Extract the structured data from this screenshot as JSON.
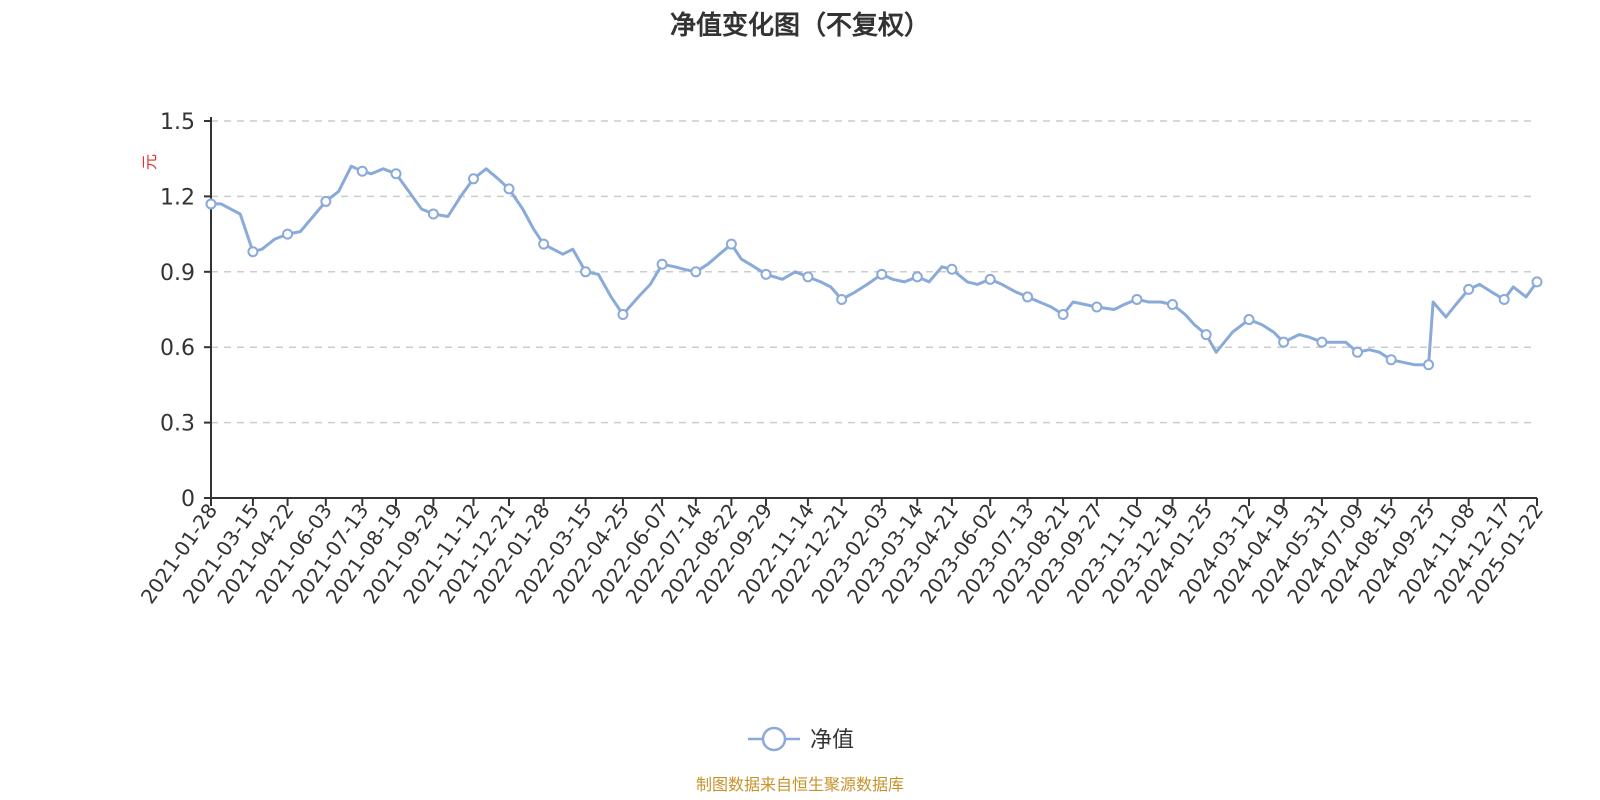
{
  "chart_data": {
    "type": "line",
    "title": "净值变化图（不复权）",
    "ylabel": "元",
    "ylim": [
      0,
      1.5
    ],
    "yticks": [
      "0",
      "0.3",
      "0.6",
      "0.9",
      "1.2",
      "1.5"
    ],
    "grid": true,
    "legend_position": "bottom-center",
    "source": "制图数据来自恒生聚源数据库",
    "colors": {
      "line": "#8aaad9",
      "marker_fill": "#ffffff",
      "axis": "#333333",
      "grid": "#cccccc",
      "unit": "#e0302b",
      "source": "#c8922a"
    },
    "x_tick_labels": [
      "2021-01-28",
      "2021-03-15",
      "2021-04-22",
      "2021-06-03",
      "2021-07-13",
      "2021-08-19",
      "2021-09-29",
      "2021-11-12",
      "2021-12-21",
      "2022-01-28",
      "2022-03-15",
      "2022-04-25",
      "2022-06-07",
      "2022-07-14",
      "2022-08-22",
      "2022-09-29",
      "2022-11-14",
      "2022-12-21",
      "2023-02-03",
      "2023-03-14",
      "2023-04-21",
      "2023-06-02",
      "2023-07-13",
      "2023-08-21",
      "2023-09-27",
      "2023-11-10",
      "2023-12-19",
      "2024-01-25",
      "2024-03-12",
      "2024-04-19",
      "2024-05-31",
      "2024-07-09",
      "2024-08-15",
      "2024-09-25",
      "2024-11-08",
      "2024-12-17",
      "2025-01-22"
    ],
    "series": [
      {
        "name": "净值",
        "x": [
          "2021-01-28",
          "2021-02-08",
          "2021-03-01",
          "2021-03-15",
          "2021-03-25",
          "2021-04-08",
          "2021-04-22",
          "2021-05-06",
          "2021-05-20",
          "2021-06-03",
          "2021-06-17",
          "2021-07-01",
          "2021-07-13",
          "2021-07-23",
          "2021-08-05",
          "2021-08-19",
          "2021-09-02",
          "2021-09-16",
          "2021-09-29",
          "2021-10-15",
          "2021-10-29",
          "2021-11-12",
          "2021-11-26",
          "2021-12-09",
          "2021-12-21",
          "2022-01-05",
          "2022-01-17",
          "2022-01-28",
          "2022-02-18",
          "2022-03-01",
          "2022-03-15",
          "2022-03-29",
          "2022-04-12",
          "2022-04-25",
          "2022-05-12",
          "2022-05-25",
          "2022-06-07",
          "2022-06-21",
          "2022-07-01",
          "2022-07-14",
          "2022-07-27",
          "2022-08-09",
          "2022-08-22",
          "2022-09-02",
          "2022-09-16",
          "2022-09-29",
          "2022-10-17",
          "2022-10-31",
          "2022-11-14",
          "2022-11-28",
          "2022-12-09",
          "2022-12-21",
          "2023-01-05",
          "2023-01-18",
          "2023-02-03",
          "2023-02-15",
          "2023-02-28",
          "2023-03-14",
          "2023-03-27",
          "2023-04-10",
          "2023-04-21",
          "2023-05-08",
          "2023-05-19",
          "2023-06-02",
          "2023-06-15",
          "2023-06-30",
          "2023-07-13",
          "2023-07-26",
          "2023-08-08",
          "2023-08-21",
          "2023-09-01",
          "2023-09-14",
          "2023-09-27",
          "2023-10-16",
          "2023-10-27",
          "2023-11-10",
          "2023-11-23",
          "2023-12-06",
          "2023-12-19",
          "2024-01-02",
          "2024-01-12",
          "2024-01-25",
          "2024-02-05",
          "2024-02-23",
          "2024-03-12",
          "2024-03-26",
          "2024-04-08",
          "2024-04-19",
          "2024-05-06",
          "2024-05-17",
          "2024-05-31",
          "2024-06-14",
          "2024-06-26",
          "2024-07-09",
          "2024-07-22",
          "2024-08-02",
          "2024-08-15",
          "2024-08-28",
          "2024-09-10",
          "2024-09-25",
          "2024-09-30",
          "2024-10-14",
          "2024-10-25",
          "2024-11-08",
          "2024-11-20",
          "2024-12-03",
          "2024-12-17",
          "2024-12-27",
          "2025-01-10",
          "2025-01-22"
        ],
        "values": [
          1.17,
          1.17,
          1.13,
          0.98,
          0.99,
          1.03,
          1.05,
          1.06,
          1.12,
          1.18,
          1.22,
          1.32,
          1.3,
          1.29,
          1.31,
          1.29,
          1.22,
          1.15,
          1.13,
          1.12,
          1.2,
          1.27,
          1.31,
          1.27,
          1.23,
          1.15,
          1.07,
          1.01,
          0.97,
          0.99,
          0.9,
          0.89,
          0.8,
          0.73,
          0.8,
          0.85,
          0.93,
          0.92,
          0.91,
          0.9,
          0.93,
          0.97,
          1.01,
          0.95,
          0.92,
          0.89,
          0.87,
          0.9,
          0.88,
          0.86,
          0.84,
          0.79,
          0.82,
          0.85,
          0.89,
          0.87,
          0.86,
          0.88,
          0.86,
          0.92,
          0.91,
          0.86,
          0.85,
          0.87,
          0.85,
          0.82,
          0.8,
          0.78,
          0.76,
          0.73,
          0.78,
          0.77,
          0.76,
          0.75,
          0.77,
          0.79,
          0.78,
          0.78,
          0.77,
          0.73,
          0.69,
          0.65,
          0.58,
          0.66,
          0.71,
          0.69,
          0.66,
          0.62,
          0.65,
          0.64,
          0.62,
          0.62,
          0.62,
          0.58,
          0.59,
          0.58,
          0.55,
          0.54,
          0.53,
          0.53,
          0.78,
          0.72,
          0.77,
          0.83,
          0.85,
          0.82,
          0.79,
          0.84,
          0.8,
          0.86
        ],
        "markers": [
          "2021-01-28",
          "2021-03-15",
          "2021-04-22",
          "2021-06-03",
          "2021-07-13",
          "2021-08-19",
          "2021-09-29",
          "2021-11-12",
          "2021-12-21",
          "2022-01-28",
          "2022-03-15",
          "2022-04-25",
          "2022-06-07",
          "2022-07-14",
          "2022-08-22",
          "2022-09-29",
          "2022-11-14",
          "2022-12-21",
          "2023-02-03",
          "2023-03-14",
          "2023-04-21",
          "2023-06-02",
          "2023-07-13",
          "2023-08-21",
          "2023-09-27",
          "2023-11-10",
          "2023-12-19",
          "2024-01-25",
          "2024-03-12",
          "2024-04-19",
          "2024-05-31",
          "2024-07-09",
          "2024-08-15",
          "2024-09-25",
          "2024-11-08",
          "2024-12-17",
          "2025-01-22"
        ]
      }
    ]
  }
}
